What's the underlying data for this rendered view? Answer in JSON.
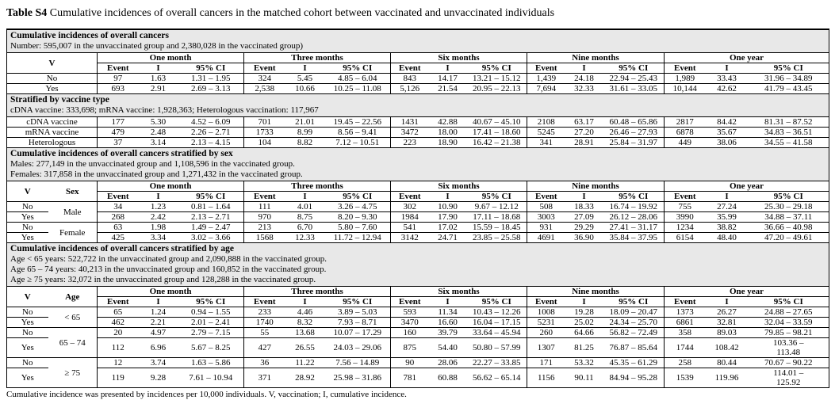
{
  "title": {
    "label": "Table S4",
    "caption": "Cumulative incidences of overall cancers in the matched cohort between vaccinated and unvaccinated individuals"
  },
  "footnote": "Cumulative incidence was presented by incidences per 10,000 individuals. V, vaccination; I, cumulative incidence.",
  "colors": {
    "band_bg": "#e8e8e8",
    "border": "#000000",
    "text": "#000000",
    "page_bg": "#ffffff"
  },
  "columns": {
    "v_label": "V",
    "periods": [
      "One month",
      "Three months",
      "Six months",
      "Nine months",
      "One year"
    ],
    "sub_headers": [
      "Event",
      "I",
      "95% CI"
    ]
  },
  "sections": [
    {
      "band_title": "Cumulative incidences of overall cancers",
      "band_notes": [
        "Number: 595,007 in the unvaccinated group and 2,380,028 in the vaccinated group)"
      ],
      "has_header": true,
      "rows": [
        {
          "v": "No",
          "cells": [
            "97",
            "1.63",
            "1.31 – 1.95",
            "324",
            "5.45",
            "4.85 – 6.04",
            "843",
            "14.17",
            "13.21 – 15.12",
            "1,439",
            "24.18",
            "22.94 – 25.43",
            "1,989",
            "33.43",
            "31.96 – 34.89"
          ]
        },
        {
          "v": "Yes",
          "cells": [
            "693",
            "2.91",
            "2.69 – 3.13",
            "2,538",
            "10.66",
            "10.25 – 11.08",
            "5,126",
            "21.54",
            "20.95 – 22.13",
            "7,694",
            "32.33",
            "31.61 – 33.05",
            "10,144",
            "42.62",
            "41.79 – 43.45"
          ]
        }
      ]
    },
    {
      "band_title": "Stratified by vaccine type",
      "band_notes": [
        "cDNA vaccine: 333,698; mRNA vaccine: 1,928,363; Heterologous vaccination: 117,967"
      ],
      "has_header": false,
      "rows": [
        {
          "v": "cDNA vaccine",
          "cells": [
            "177",
            "5.30",
            "4.52 – 6.09",
            "701",
            "21.01",
            "19.45 – 22.56",
            "1431",
            "42.88",
            "40.67 – 45.10",
            "2108",
            "63.17",
            "60.48 – 65.86",
            "2817",
            "84.42",
            "81.31 – 87.52"
          ]
        },
        {
          "v": "mRNA vaccine",
          "cells": [
            "479",
            "2.48",
            "2.26 – 2.71",
            "1733",
            "8.99",
            "8.56 – 9.41",
            "3472",
            "18.00",
            "17.41 – 18.60",
            "5245",
            "27.20",
            "26.46 – 27.93",
            "6878",
            "35.67",
            "34.83 – 36.51"
          ]
        },
        {
          "v": "Heterologous",
          "cells": [
            "37",
            "3.14",
            "2.13 – 4.15",
            "104",
            "8.82",
            "7.12 – 10.51",
            "223",
            "18.90",
            "16.42 – 21.38",
            "341",
            "28.91",
            "25.84 – 31.97",
            "449",
            "38.06",
            "34.55 – 41.58"
          ]
        }
      ]
    },
    {
      "band_title": "Cumulative incidences of overall cancers stratified by sex",
      "band_notes": [
        "Males: 277,149 in the unvaccinated group and 1,108,596 in the vaccinated group.",
        "Females: 317,858 in the unvaccinated group and 1,271,432 in the vaccinated group."
      ],
      "has_header": true,
      "group_col_label": "Sex",
      "groups": [
        {
          "label": "Male",
          "rows": [
            {
              "v": "No",
              "cells": [
                "34",
                "1.23",
                "0.81 – 1.64",
                "111",
                "4.01",
                "3.26 – 4.75",
                "302",
                "10.90",
                "9.67 – 12.12",
                "508",
                "18.33",
                "16.74 – 19.92",
                "755",
                "27.24",
                "25.30 – 29.18"
              ]
            },
            {
              "v": "Yes",
              "cells": [
                "268",
                "2.42",
                "2.13 – 2.71",
                "970",
                "8.75",
                "8.20 – 9.30",
                "1984",
                "17.90",
                "17.11 – 18.68",
                "3003",
                "27.09",
                "26.12 – 28.06",
                "3990",
                "35.99",
                "34.88 – 37.11"
              ]
            }
          ]
        },
        {
          "label": "Female",
          "rows": [
            {
              "v": "No",
              "cells": [
                "63",
                "1.98",
                "1.49 – 2.47",
                "213",
                "6.70",
                "5.80 – 7.60",
                "541",
                "17.02",
                "15.59 – 18.45",
                "931",
                "29.29",
                "27.41 – 31.17",
                "1234",
                "38.82",
                "36.66 – 40.98"
              ]
            },
            {
              "v": "Yes",
              "cells": [
                "425",
                "3.34",
                "3.02 – 3.66",
                "1568",
                "12.33",
                "11.72 – 12.94",
                "3142",
                "24.71",
                "23.85 – 25.58",
                "4691",
                "36.90",
                "35.84 – 37.95",
                "6154",
                "48.40",
                "47.20 – 49.61"
              ]
            }
          ]
        }
      ]
    },
    {
      "band_title": "Cumulative incidences of overall cancers stratified by age",
      "band_notes": [
        "Age < 65 years: 522,722 in the unvaccinated group and 2,090,888 in the vaccinated group.",
        "Age 65 – 74 years: 40,213 in the unvaccinated group and 160,852 in the vaccinated group.",
        "Age ≥ 75 years: 32,072 in the unvaccinated group and 128,288 in the vaccinated group."
      ],
      "has_header": true,
      "group_col_label": "Age",
      "groups": [
        {
          "label": "< 65",
          "rows": [
            {
              "v": "No",
              "cells": [
                "65",
                "1.24",
                "0.94 – 1.55",
                "233",
                "4.46",
                "3.89 – 5.03",
                "593",
                "11.34",
                "10.43 – 12.26",
                "1008",
                "19.28",
                "18.09 – 20.47",
                "1373",
                "26.27",
                "24.88 – 27.65"
              ]
            },
            {
              "v": "Yes",
              "cells": [
                "462",
                "2.21",
                "2.01 – 2.41",
                "1740",
                "8.32",
                "7.93 – 8.71",
                "3470",
                "16.60",
                "16.04 – 17.15",
                "5231",
                "25.02",
                "24.34 – 25.70",
                "6861",
                "32.81",
                "32.04 – 33.59"
              ]
            }
          ]
        },
        {
          "label": "65 – 74",
          "rows": [
            {
              "v": "No",
              "cells": [
                "20",
                "4.97",
                "2.79 – 7.15",
                "55",
                "13.68",
                "10.07 – 17.29",
                "160",
                "39.79",
                "33.64 – 45.94",
                "260",
                "64.66",
                "56.82 – 72.49",
                "358",
                "89.03",
                "79.85 – 98.21"
              ]
            },
            {
              "v": "Yes",
              "cells": [
                "112",
                "6.96",
                "5.67 – 8.25",
                "427",
                "26.55",
                "24.03 – 29.06",
                "875",
                "54.40",
                "50.80 – 57.99",
                "1307",
                "81.25",
                "76.87 – 85.64",
                "1744",
                "108.42",
                "103.36 –\n113.48"
              ]
            }
          ]
        },
        {
          "label": "≥ 75",
          "rows": [
            {
              "v": "No",
              "cells": [
                "12",
                "3.74",
                "1.63 – 5.86",
                "36",
                "11.22",
                "7.56 – 14.89",
                "90",
                "28.06",
                "22.27 – 33.85",
                "171",
                "53.32",
                "45.35 – 61.29",
                "258",
                "80.44",
                "70.67 – 90.22"
              ]
            },
            {
              "v": "Yes",
              "cells": [
                "119",
                "9.28",
                "7.61 – 10.94",
                "371",
                "28.92",
                "25.98 – 31.86",
                "781",
                "60.88",
                "56.62 – 65.14",
                "1156",
                "90.11",
                "84.94 – 95.28",
                "1539",
                "119.96",
                "114.01 –\n125.92"
              ]
            }
          ]
        }
      ]
    }
  ]
}
